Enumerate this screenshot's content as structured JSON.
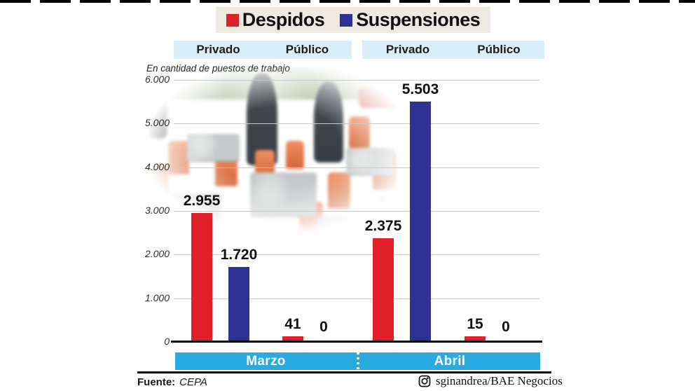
{
  "page": {
    "background": "#ffffff"
  },
  "legend": {
    "background": "#eeeae2",
    "items": [
      {
        "label": "Despidos",
        "color": "#e0202a"
      },
      {
        "label": "Suspensiones",
        "color": "#2e3192"
      }
    ]
  },
  "sector_headers": {
    "background": "#daeef9",
    "left": [
      "Privado",
      "Público"
    ],
    "right": [
      "Privado",
      "Público"
    ]
  },
  "subtitle": "En cantidad de puestos de trabajo",
  "chart_data": {
    "type": "bar",
    "title": "Despidos y Suspensiones",
    "ylabel": "En cantidad de puestos de trabajo",
    "ylim": [
      0,
      6000
    ],
    "grid": true,
    "legend_position": "top",
    "y_ticks": [
      {
        "label": "6.000",
        "value": 6000
      },
      {
        "label": "5.000",
        "value": 5000
      },
      {
        "label": "4.000",
        "value": 4000
      },
      {
        "label": "3.000",
        "value": 3000
      },
      {
        "label": "2.000",
        "value": 2000
      },
      {
        "label": "1.000",
        "value": 1000
      },
      {
        "label": "0",
        "value": 0
      }
    ],
    "series": [
      {
        "name": "Despidos",
        "color": "#e0202a"
      },
      {
        "name": "Suspensiones",
        "color": "#2e3192"
      }
    ],
    "groups": [
      {
        "month": "Marzo",
        "sector": "Privado",
        "values": [
          2955,
          1720
        ],
        "value_labels": [
          "2.955",
          "1.720"
        ]
      },
      {
        "month": "Marzo",
        "sector": "Público",
        "values": [
          41,
          0
        ],
        "value_labels": [
          "41",
          "0"
        ]
      },
      {
        "month": "Abril",
        "sector": "Privado",
        "values": [
          2375,
          5503
        ],
        "value_labels": [
          "2.375",
          "5.503"
        ]
      },
      {
        "month": "Abril",
        "sector": "Público",
        "values": [
          15,
          0
        ],
        "value_labels": [
          "15",
          "0"
        ]
      }
    ]
  },
  "months_bar": {
    "background": "#29abe2",
    "labels": [
      "Marzo",
      "Abril"
    ]
  },
  "footer": {
    "source_label": "Fuente:",
    "source_value": "CEPA",
    "instagram_icon": "instagram-icon",
    "credit": "sginandrea/BAE Negocios"
  }
}
